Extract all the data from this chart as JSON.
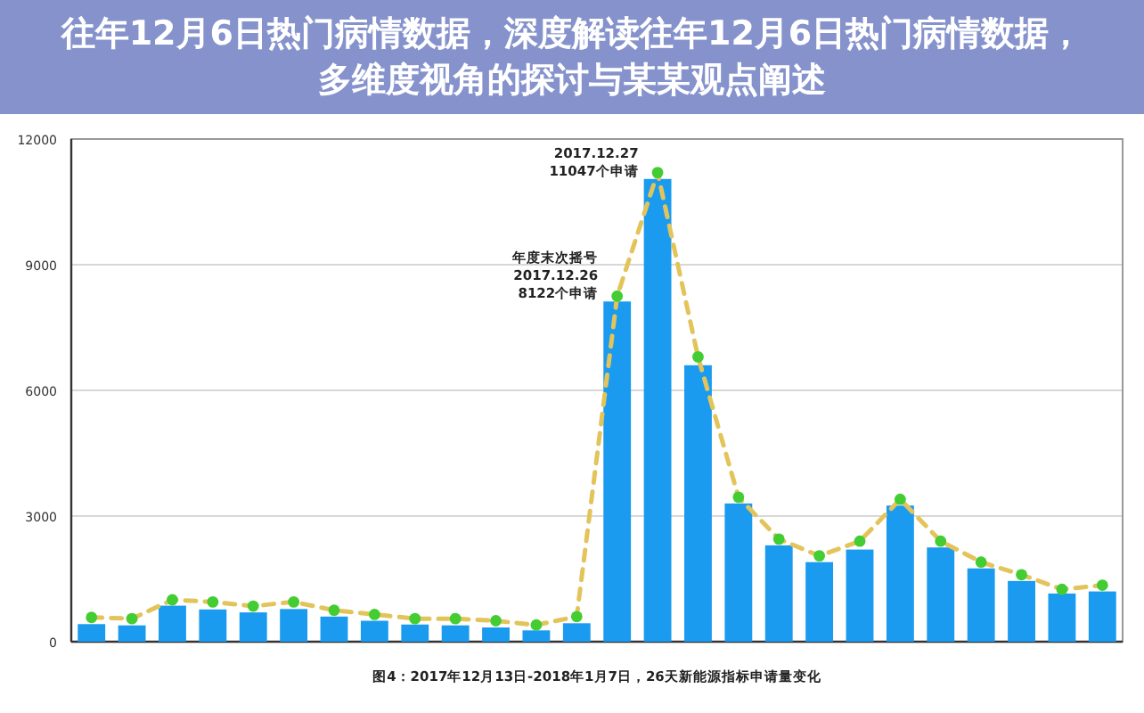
{
  "chart_data": {
    "type": "bar",
    "title": "往年12月6日热门病情数据，深度解读往年12月6日热门病情数据，多维度视角的探讨与某某观点阐述",
    "categories": [
      null,
      null,
      null,
      null,
      null,
      null,
      null,
      null,
      null,
      null,
      null,
      null,
      null,
      null,
      null,
      null,
      null,
      null,
      null,
      null,
      null,
      null,
      null,
      null,
      null,
      null
    ],
    "series": [
      {
        "color": "#1a9bf0",
        "values": [
          420,
          390,
          860,
          770,
          700,
          780,
          600,
          500,
          410,
          390,
          340,
          270,
          440,
          8122,
          11047,
          6600,
          3300,
          2300,
          1900,
          2200,
          3250,
          2250,
          1750,
          1450,
          1150,
          1200
        ]
      },
      {
        "type": "line",
        "color": "#e3c45a",
        "values": [
          580,
          550,
          1000,
          950,
          850,
          950,
          750,
          650,
          550,
          550,
          500,
          400,
          600,
          8250,
          11200,
          6800,
          3450,
          2450,
          2050,
          2400,
          3400,
          2400,
          1900,
          1600,
          1250,
          1350
        ]
      }
    ],
    "marker": "circle",
    "line_style": "dashed",
    "ylim": [
      0,
      12000
    ],
    "yticks": [
      0,
      3000,
      6000,
      9000,
      12000
    ],
    "grid": "y",
    "annotations": [
      "2017.12.27\n11047个申请",
      "年度末次摇号\n2017.12.26\n8122个申请",
      "图4：2017年12月13日-2018年1月7日，26天新能源指标申请量变化"
    ]
  }
}
